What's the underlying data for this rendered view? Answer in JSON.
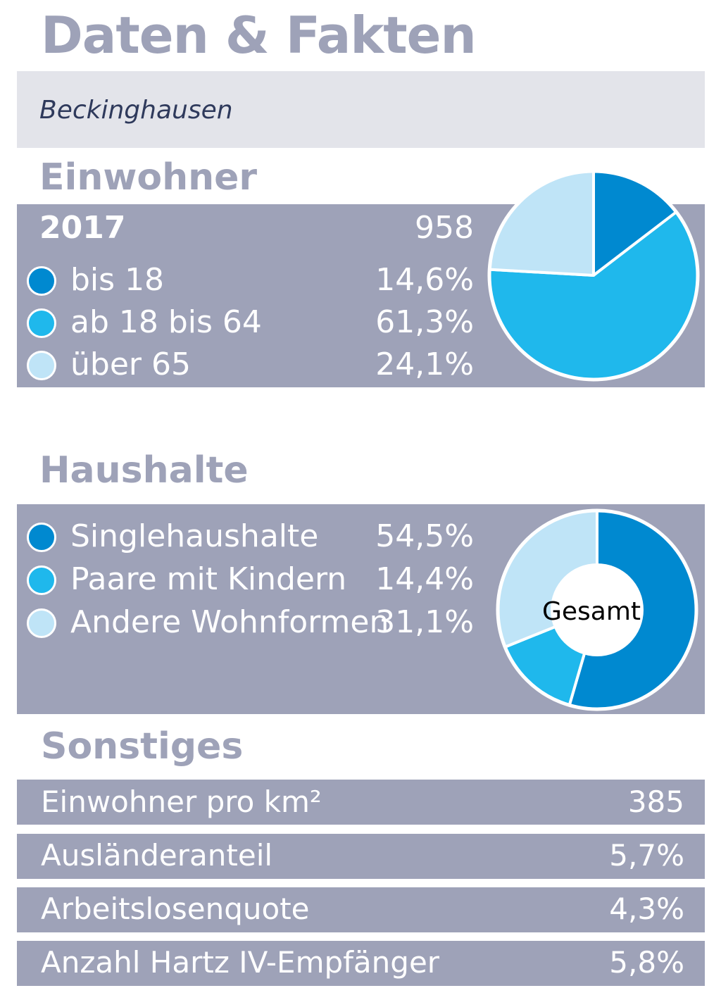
{
  "header": {
    "title": "Daten & Fakten",
    "location": "Beckinghausen"
  },
  "colors": {
    "dark_blue": "#0089d0",
    "mid_blue": "#1fb8ec",
    "light_blue": "#bfe4f7",
    "panel": "#9ea2b8"
  },
  "einwohner": {
    "heading": "Einwohner",
    "year": "2017",
    "total": "958",
    "rows": [
      {
        "label": "bis 18",
        "value": "14,6%"
      },
      {
        "label": "ab 18 bis 64",
        "value": "61,3%"
      },
      {
        "label": "über 65",
        "value": "24,1%"
      }
    ]
  },
  "haushalte": {
    "heading": "Haushalte",
    "center_label": "Gesamt",
    "rows": [
      {
        "label": "Singlehaushalte",
        "value": "54,5%"
      },
      {
        "label": "Paare mit Kindern",
        "value": "14,4%"
      },
      {
        "label": "Andere Wohnformen",
        "value": "31,1%"
      }
    ]
  },
  "sonstiges": {
    "heading": "Sonstiges",
    "rows": [
      {
        "label": "Einwohner pro km²",
        "value": "385"
      },
      {
        "label": "Ausländeranteil",
        "value": "5,7%"
      },
      {
        "label": "Arbeitslosenquote",
        "value": "4,3%"
      },
      {
        "label": "Anzahl Hartz IV-Empfänger",
        "value": "5,8%"
      }
    ]
  },
  "chart_data": [
    {
      "type": "pie",
      "categories": [
        "bis 18",
        "ab 18 bis 64",
        "über 65"
      ],
      "values": [
        14.6,
        61.3,
        24.1
      ],
      "colors": [
        "#0089d0",
        "#1fb8ec",
        "#bfe4f7"
      ]
    },
    {
      "type": "pie",
      "categories": [
        "Singlehaushalte",
        "Paare mit Kindern",
        "Andere Wohnformen"
      ],
      "values": [
        54.5,
        14.4,
        31.1
      ],
      "colors": [
        "#0089d0",
        "#1fb8ec",
        "#bfe4f7"
      ]
    }
  ]
}
